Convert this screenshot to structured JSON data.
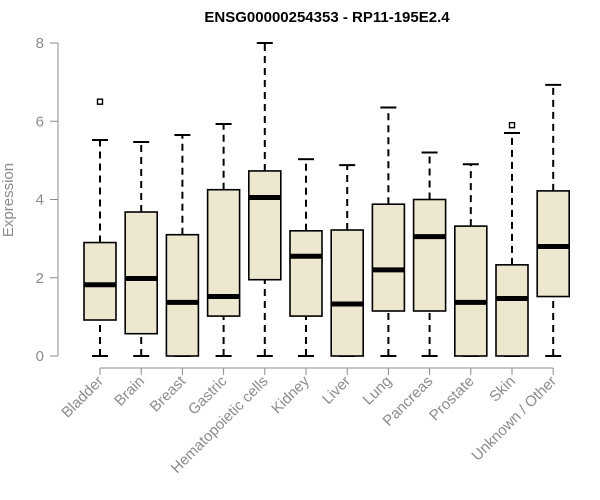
{
  "chart_data": {
    "type": "box",
    "title": "ENSG00000254353 - RP11-195E2.4",
    "xlabel": "",
    "ylabel": "Expression",
    "ylim": [
      0,
      8
    ],
    "yticks": [
      0,
      2,
      4,
      6,
      8
    ],
    "grid": false,
    "colors": {
      "box_fill": "#ede7cf",
      "box_stroke": "#000000",
      "median": "#000000",
      "axis": "#8c8c8c"
    },
    "categories": [
      "Bladder",
      "Brain",
      "Breast",
      "Gastric",
      "Hematopoietic cells",
      "Kidney",
      "Liver",
      "Lung",
      "Pancreas",
      "Prostate",
      "Skin",
      "Unknown / Other"
    ],
    "boxes": [
      {
        "category": "Bladder",
        "min": 0,
        "q1": 0.92,
        "median": 1.82,
        "q3": 2.9,
        "max": 5.52,
        "outliers": [
          6.5
        ]
      },
      {
        "category": "Brain",
        "min": 0,
        "q1": 0.57,
        "median": 1.98,
        "q3": 3.68,
        "max": 5.47,
        "outliers": []
      },
      {
        "category": "Breast",
        "min": 0,
        "q1": 0,
        "median": 1.37,
        "q3": 3.1,
        "max": 5.65,
        "outliers": []
      },
      {
        "category": "Gastric",
        "min": 0,
        "q1": 1.02,
        "median": 1.52,
        "q3": 4.25,
        "max": 5.93,
        "outliers": []
      },
      {
        "category": "Hematopoietic cells",
        "min": 0,
        "q1": 1.95,
        "median": 4.05,
        "q3": 4.73,
        "max": 8.0,
        "outliers": []
      },
      {
        "category": "Kidney",
        "min": 0,
        "q1": 1.02,
        "median": 2.55,
        "q3": 3.2,
        "max": 5.03,
        "outliers": []
      },
      {
        "category": "Liver",
        "min": 0,
        "q1": 0,
        "median": 1.33,
        "q3": 3.22,
        "max": 4.88,
        "outliers": []
      },
      {
        "category": "Lung",
        "min": 0,
        "q1": 1.15,
        "median": 2.2,
        "q3": 3.88,
        "max": 6.35,
        "outliers": []
      },
      {
        "category": "Pancreas",
        "min": 0,
        "q1": 1.15,
        "median": 3.05,
        "q3": 4.0,
        "max": 5.2,
        "outliers": []
      },
      {
        "category": "Prostate",
        "min": 0,
        "q1": 0,
        "median": 1.37,
        "q3": 3.32,
        "max": 4.9,
        "outliers": []
      },
      {
        "category": "Skin",
        "min": 0,
        "q1": 0,
        "median": 1.47,
        "q3": 2.33,
        "max": 5.7,
        "outliers": [
          5.9
        ]
      },
      {
        "category": "Unknown / Other",
        "min": 0,
        "q1": 1.52,
        "median": 2.8,
        "q3": 4.22,
        "max": 6.93,
        "outliers": []
      }
    ]
  }
}
